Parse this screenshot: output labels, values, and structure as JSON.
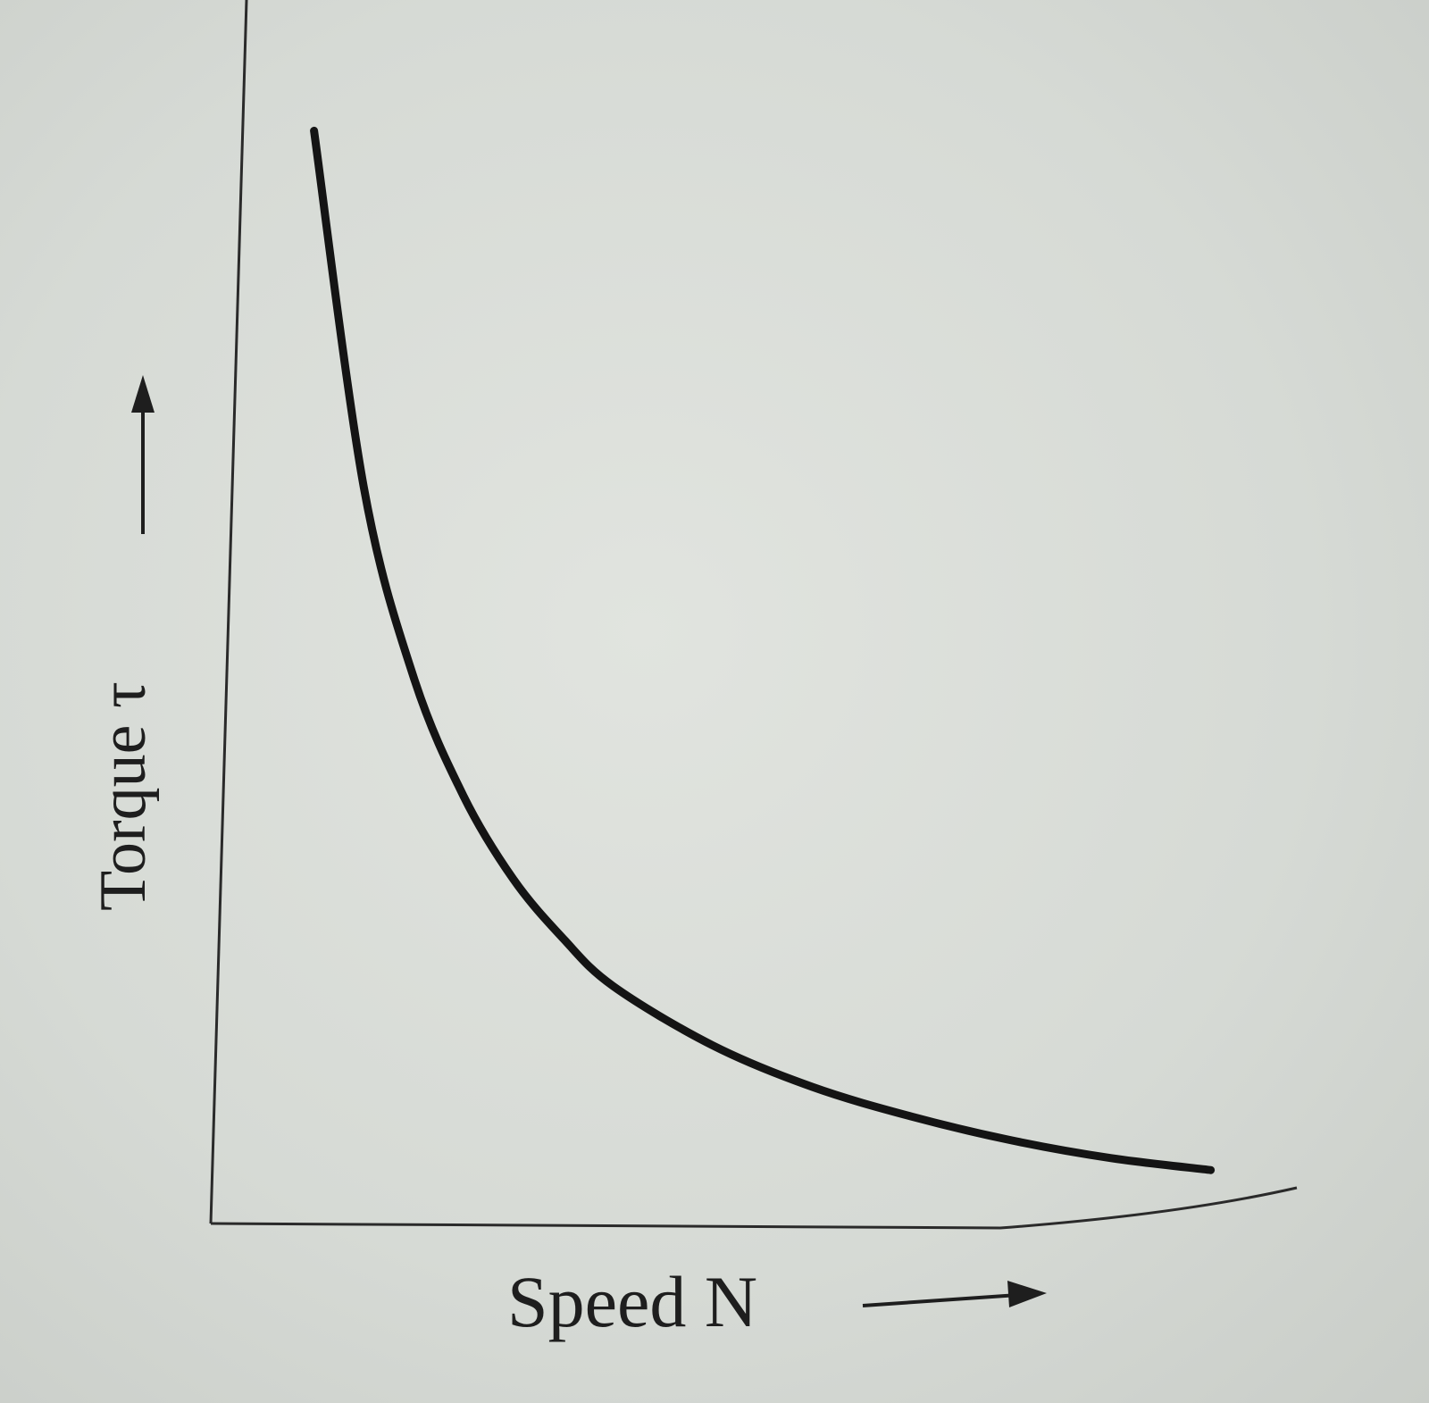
{
  "chart_data": {
    "type": "line",
    "title": "",
    "xlabel": "Speed N",
    "ylabel": "Torque τ",
    "grid": false,
    "legend": "none",
    "x_ticks": [],
    "y_ticks": [],
    "xlim": [
      0,
      10
    ],
    "ylim": [
      0,
      10
    ],
    "series": [
      {
        "color": "#141414",
        "x": [
          1.0,
          1.5,
          2.0,
          2.5,
          3.0,
          3.5,
          4.0,
          5.0,
          6.0,
          7.0,
          8.0,
          9.0,
          10.0
        ],
        "y": [
          9.2,
          6.2,
          4.6,
          3.6,
          2.9,
          2.4,
          2.0,
          1.5,
          1.15,
          0.9,
          0.7,
          0.55,
          0.45
        ]
      }
    ]
  },
  "colors": {
    "paper": "#dcdfda",
    "ink": "#141414",
    "axis": "#2a2a2a"
  }
}
